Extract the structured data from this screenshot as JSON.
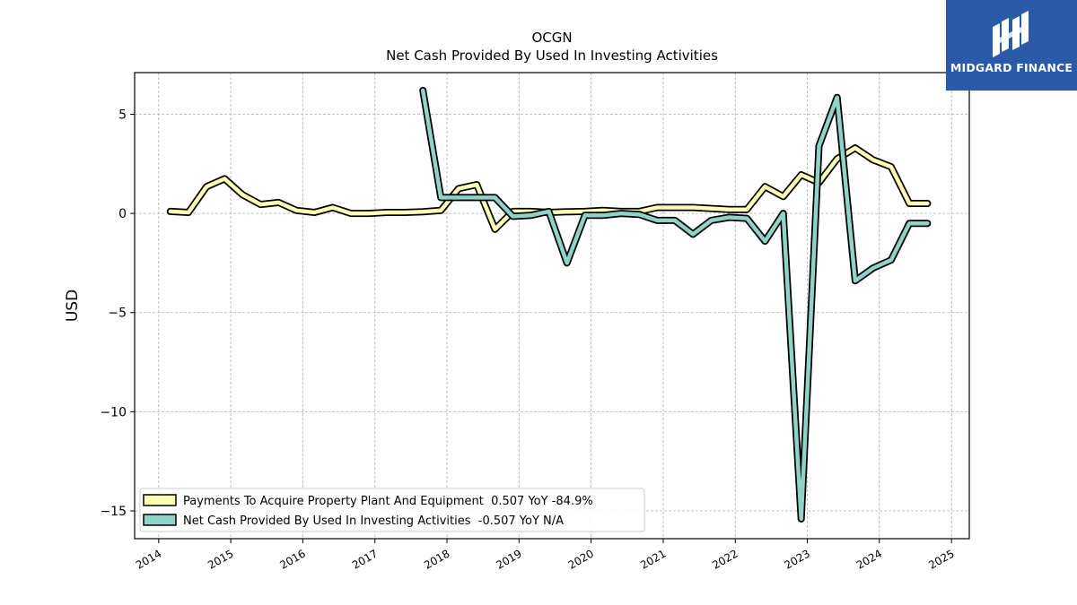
{
  "chart_data": {
    "type": "line",
    "title": "OCGN",
    "subtitle": "Net Cash Provided By Used In Investing Activities",
    "xlabel": "",
    "ylabel": "USD",
    "x_ticks": [
      "2014",
      "2015",
      "2016",
      "2017",
      "2018",
      "2019",
      "2020",
      "2021",
      "2022",
      "2023",
      "2024",
      "2025"
    ],
    "y_ticks": [
      5,
      0,
      -5,
      -10,
      -15
    ],
    "y_tick_labels": [
      "5",
      "0",
      "−5",
      "−10",
      "−15"
    ],
    "xlim": [
      "2013-09-01",
      "2025-04-01"
    ],
    "ylim": [
      -16.4,
      7.1
    ],
    "grid": true,
    "legend_position": "lower-left",
    "series": [
      {
        "name": "Payments To Acquire Property Plant And Equipment  0.507 YoY -84.9%",
        "color": "#ffffb3",
        "points": [
          [
            "2014-03-01",
            0.1
          ],
          [
            "2014-06-01",
            0.05
          ],
          [
            "2014-09-01",
            1.35
          ],
          [
            "2014-12-01",
            1.75
          ],
          [
            "2015-03-01",
            0.95
          ],
          [
            "2015-06-01",
            0.45
          ],
          [
            "2015-09-01",
            0.55
          ],
          [
            "2015-12-01",
            0.15
          ],
          [
            "2016-03-01",
            0.05
          ],
          [
            "2016-06-01",
            0.3
          ],
          [
            "2016-09-01",
            0.0
          ],
          [
            "2016-12-01",
            0.0
          ],
          [
            "2017-03-01",
            0.05
          ],
          [
            "2017-06-01",
            0.05
          ],
          [
            "2017-09-01",
            0.08
          ],
          [
            "2017-12-01",
            0.15
          ],
          [
            "2018-03-01",
            1.25
          ],
          [
            "2018-06-01",
            1.45
          ],
          [
            "2018-09-01",
            -0.8
          ],
          [
            "2018-12-01",
            0.1
          ],
          [
            "2019-03-01",
            0.1
          ],
          [
            "2019-06-01",
            0.05
          ],
          [
            "2019-09-01",
            0.08
          ],
          [
            "2019-12-01",
            0.1
          ],
          [
            "2020-03-01",
            0.15
          ],
          [
            "2020-06-01",
            0.1
          ],
          [
            "2020-09-01",
            0.1
          ],
          [
            "2020-12-01",
            0.3
          ],
          [
            "2021-03-01",
            0.3
          ],
          [
            "2021-06-01",
            0.3
          ],
          [
            "2021-09-01",
            0.25
          ],
          [
            "2021-12-01",
            0.2
          ],
          [
            "2022-03-01",
            0.2
          ],
          [
            "2022-06-01",
            1.35
          ],
          [
            "2022-09-01",
            0.85
          ],
          [
            "2022-12-01",
            1.95
          ],
          [
            "2023-03-01",
            1.55
          ],
          [
            "2023-06-01",
            2.75
          ],
          [
            "2023-09-01",
            3.3
          ],
          [
            "2023-12-01",
            2.7
          ],
          [
            "2024-03-01",
            2.35
          ],
          [
            "2024-06-01",
            0.5
          ],
          [
            "2024-09-01",
            0.5
          ]
        ]
      },
      {
        "name": "Net Cash Provided By Used In Investing Activities  -0.507 YoY N/A",
        "color": "#8dd3c7",
        "points": [
          [
            "2017-09-01",
            6.2
          ],
          [
            "2017-12-01",
            0.8
          ],
          [
            "2018-03-01",
            0.8
          ],
          [
            "2018-06-01",
            0.8
          ],
          [
            "2018-09-01",
            0.8
          ],
          [
            "2018-12-01",
            -0.15
          ],
          [
            "2019-03-01",
            -0.1
          ],
          [
            "2019-06-01",
            0.1
          ],
          [
            "2019-09-01",
            -2.5
          ],
          [
            "2019-12-01",
            -0.1
          ],
          [
            "2020-03-01",
            -0.1
          ],
          [
            "2020-06-01",
            0.0
          ],
          [
            "2020-09-01",
            -0.05
          ],
          [
            "2020-12-01",
            -0.35
          ],
          [
            "2021-03-01",
            -0.35
          ],
          [
            "2021-06-01",
            -1.05
          ],
          [
            "2021-09-01",
            -0.35
          ],
          [
            "2021-12-01",
            -0.2
          ],
          [
            "2022-03-01",
            -0.25
          ],
          [
            "2022-06-01",
            -1.4
          ],
          [
            "2022-09-01",
            0.0
          ],
          [
            "2022-12-01",
            -15.4
          ],
          [
            "2023-03-01",
            3.4
          ],
          [
            "2023-06-01",
            5.85
          ],
          [
            "2023-09-01",
            -3.4
          ],
          [
            "2023-12-01",
            -2.75
          ],
          [
            "2024-03-01",
            -2.35
          ],
          [
            "2024-06-01",
            -0.5
          ],
          [
            "2024-09-01",
            -0.5
          ]
        ]
      }
    ]
  },
  "logo": {
    "text": "MIDGARD FINANCE"
  }
}
